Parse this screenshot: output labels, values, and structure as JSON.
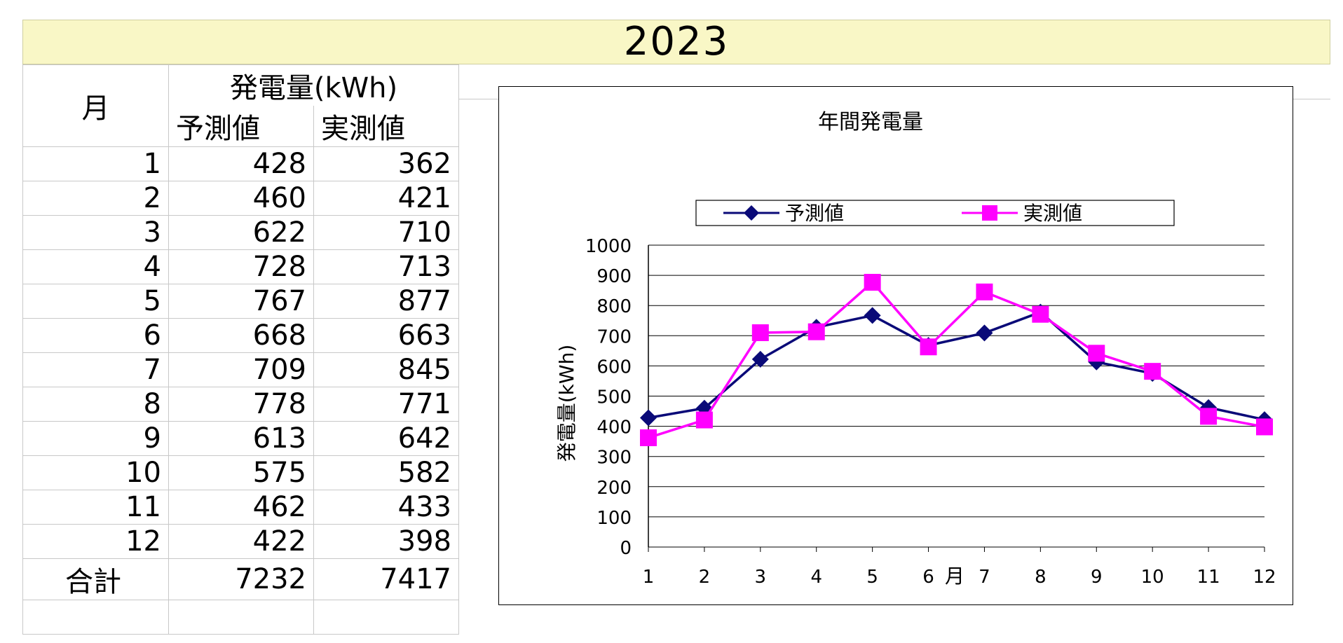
{
  "title": "2023",
  "table": {
    "month_header": "月",
    "group_header": "発電量(kWh)",
    "col_predicted": "予測値",
    "col_actual": "実測値",
    "rows": [
      {
        "month": "1",
        "predicted": "428",
        "actual": "362"
      },
      {
        "month": "2",
        "predicted": "460",
        "actual": "421"
      },
      {
        "month": "3",
        "predicted": "622",
        "actual": "710"
      },
      {
        "month": "4",
        "predicted": "728",
        "actual": "713"
      },
      {
        "month": "5",
        "predicted": "767",
        "actual": "877"
      },
      {
        "month": "6",
        "predicted": "668",
        "actual": "663"
      },
      {
        "month": "7",
        "predicted": "709",
        "actual": "845"
      },
      {
        "month": "8",
        "predicted": "778",
        "actual": "771"
      },
      {
        "month": "9",
        "predicted": "613",
        "actual": "642"
      },
      {
        "month": "10",
        "predicted": "575",
        "actual": "582"
      },
      {
        "month": "11",
        "predicted": "462",
        "actual": "433"
      },
      {
        "month": "12",
        "predicted": "422",
        "actual": "398"
      }
    ],
    "total_label": "合計",
    "total_predicted": "7232",
    "total_actual": "7417"
  },
  "chart_data": {
    "type": "line",
    "title": "年間発電量",
    "xlabel": "月",
    "ylabel": "発電量(kWh)",
    "categories": [
      "1",
      "2",
      "3",
      "4",
      "5",
      "6",
      "7",
      "8",
      "9",
      "10",
      "11",
      "12"
    ],
    "ylim": [
      0,
      1000
    ],
    "yticks": [
      0,
      100,
      200,
      300,
      400,
      500,
      600,
      700,
      800,
      900,
      1000
    ],
    "grid": true,
    "legend_position": "top",
    "series": [
      {
        "name": "予測値",
        "color": "#0a0a78",
        "marker": "diamond",
        "values": [
          428,
          460,
          622,
          728,
          767,
          668,
          709,
          778,
          613,
          575,
          462,
          422
        ]
      },
      {
        "name": "実測値",
        "color": "#ff00ff",
        "marker": "square",
        "values": [
          362,
          421,
          710,
          713,
          877,
          663,
          845,
          771,
          642,
          582,
          433,
          398
        ]
      }
    ]
  }
}
